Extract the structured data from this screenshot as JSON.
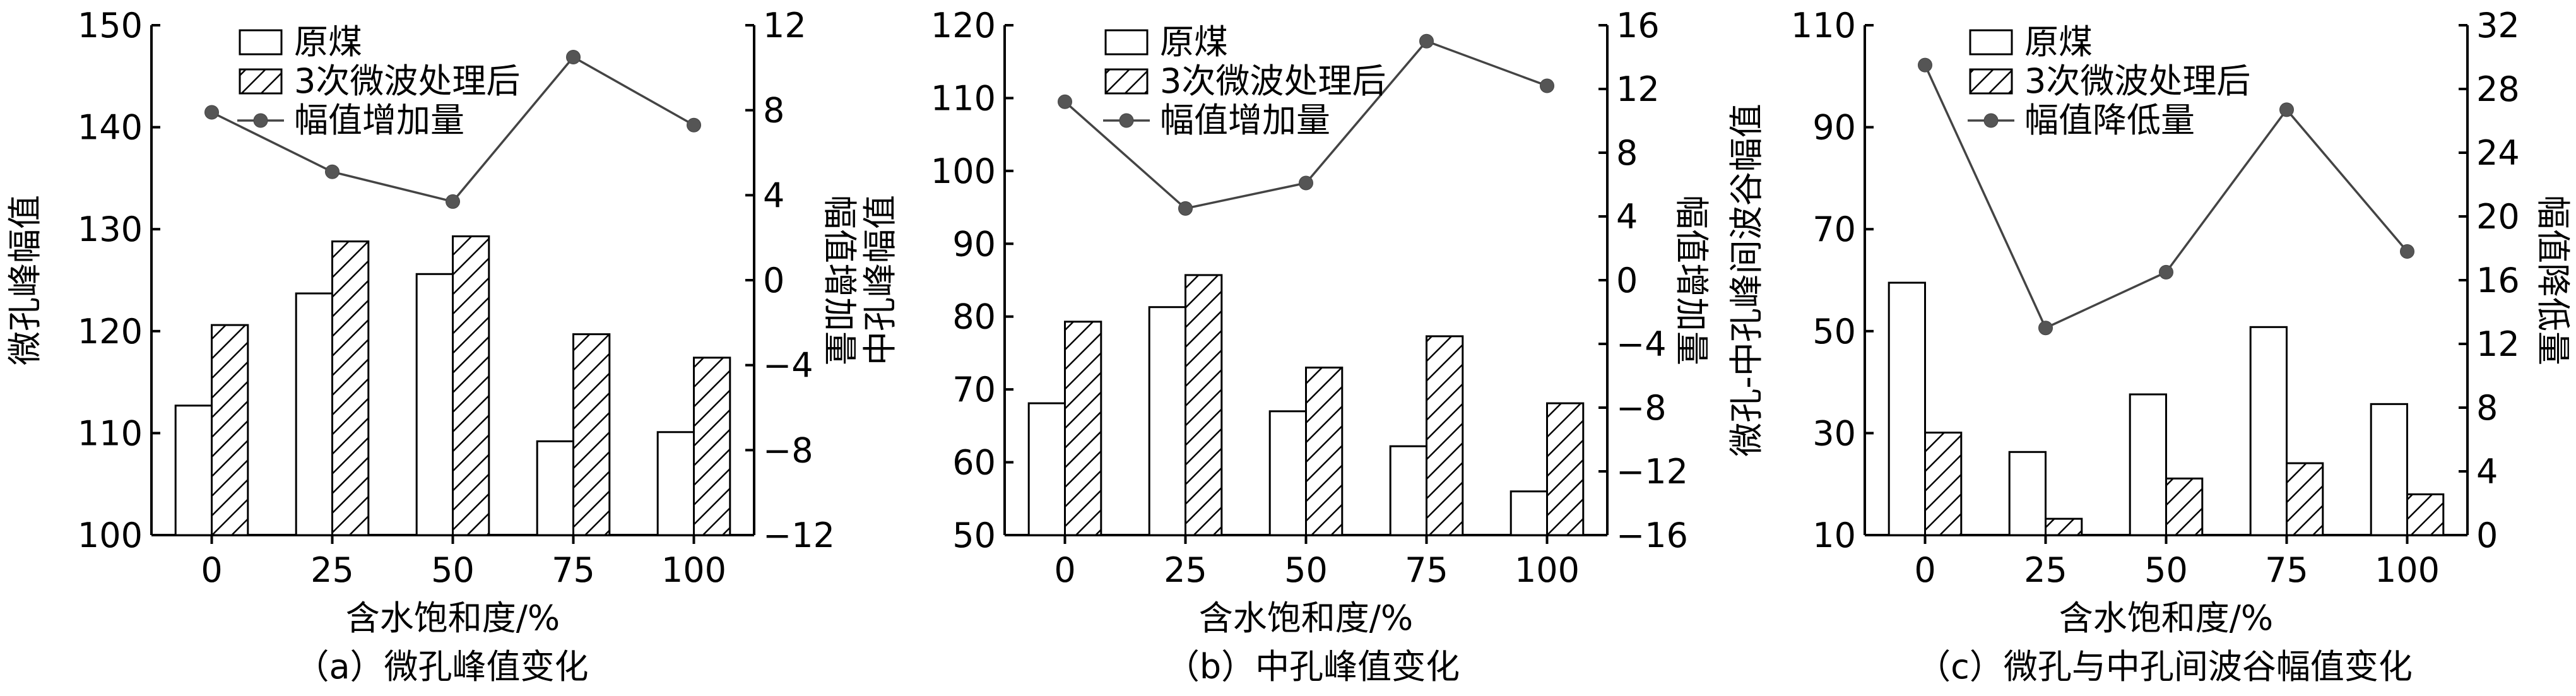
{
  "chart_data": [
    {
      "type": "bar",
      "caption": "（a）微孔峰值变化",
      "xlabel": "含水饱和度/%",
      "ylabel": "微孔峰幅值",
      "y2label": "幅值增加量",
      "categories": [
        "0",
        "25",
        "50",
        "75",
        "100"
      ],
      "ylim": [
        100,
        150
      ],
      "yticks": [
        100,
        110,
        120,
        130,
        140,
        150
      ],
      "y2lim": [
        -12,
        12
      ],
      "y2ticks": [
        -12,
        -8,
        -4,
        0,
        4,
        8,
        12
      ],
      "series": [
        {
          "name": "原煤",
          "kind": "bar",
          "values": [
            112.7,
            123.7,
            125.6,
            109.2,
            110.1
          ]
        },
        {
          "name": "3次微波处理后",
          "kind": "bar-hatched",
          "values": [
            120.6,
            128.8,
            129.3,
            119.7,
            117.4
          ]
        },
        {
          "name": "幅值增加量",
          "kind": "line",
          "axis": "right",
          "values": [
            7.9,
            5.1,
            3.7,
            10.5,
            7.3
          ]
        }
      ]
    },
    {
      "type": "bar",
      "caption": "（b）中孔峰值变化",
      "xlabel": "含水饱和度/%",
      "ylabel": "中孔峰幅值",
      "y2label": "幅值增加量",
      "categories": [
        "0",
        "25",
        "50",
        "75",
        "100"
      ],
      "ylim": [
        50,
        120
      ],
      "yticks": [
        50,
        60,
        70,
        80,
        90,
        100,
        110,
        120
      ],
      "y2lim": [
        -16,
        16
      ],
      "y2ticks": [
        -16,
        -12,
        -8,
        -4,
        0,
        4,
        8,
        12,
        16
      ],
      "series": [
        {
          "name": "原煤",
          "kind": "bar",
          "values": [
            68.1,
            81.3,
            67.0,
            62.2,
            56.0
          ]
        },
        {
          "name": "3次微波处理后",
          "kind": "bar-hatched",
          "values": [
            79.3,
            85.7,
            73.0,
            77.3,
            68.1
          ]
        },
        {
          "name": "幅值增加量",
          "kind": "line",
          "axis": "right",
          "values": [
            11.2,
            4.5,
            6.1,
            15.0,
            12.2
          ]
        }
      ]
    },
    {
      "type": "bar",
      "caption": "（c）微孔与中孔间波谷幅值变化",
      "xlabel": "含水饱和度/%",
      "ylabel": "微孔-中孔峰间波谷幅值",
      "y2label": "幅值降低量",
      "categories": [
        "0",
        "25",
        "50",
        "75",
        "100"
      ],
      "ylim": [
        10,
        110
      ],
      "yticks": [
        10,
        30,
        50,
        70,
        90,
        110
      ],
      "y2lim": [
        0,
        32
      ],
      "y2ticks": [
        0,
        4,
        8,
        12,
        16,
        20,
        24,
        28,
        32
      ],
      "series": [
        {
          "name": "原煤",
          "kind": "bar",
          "values": [
            59.5,
            26.3,
            37.6,
            50.8,
            35.7
          ]
        },
        {
          "name": "3次微波处理后",
          "kind": "bar-hatched",
          "values": [
            30.1,
            13.2,
            21.1,
            24.1,
            18.0
          ]
        },
        {
          "name": "幅值降低量",
          "kind": "line",
          "axis": "right",
          "values": [
            29.5,
            13.0,
            16.5,
            26.7,
            17.8
          ]
        }
      ]
    }
  ]
}
